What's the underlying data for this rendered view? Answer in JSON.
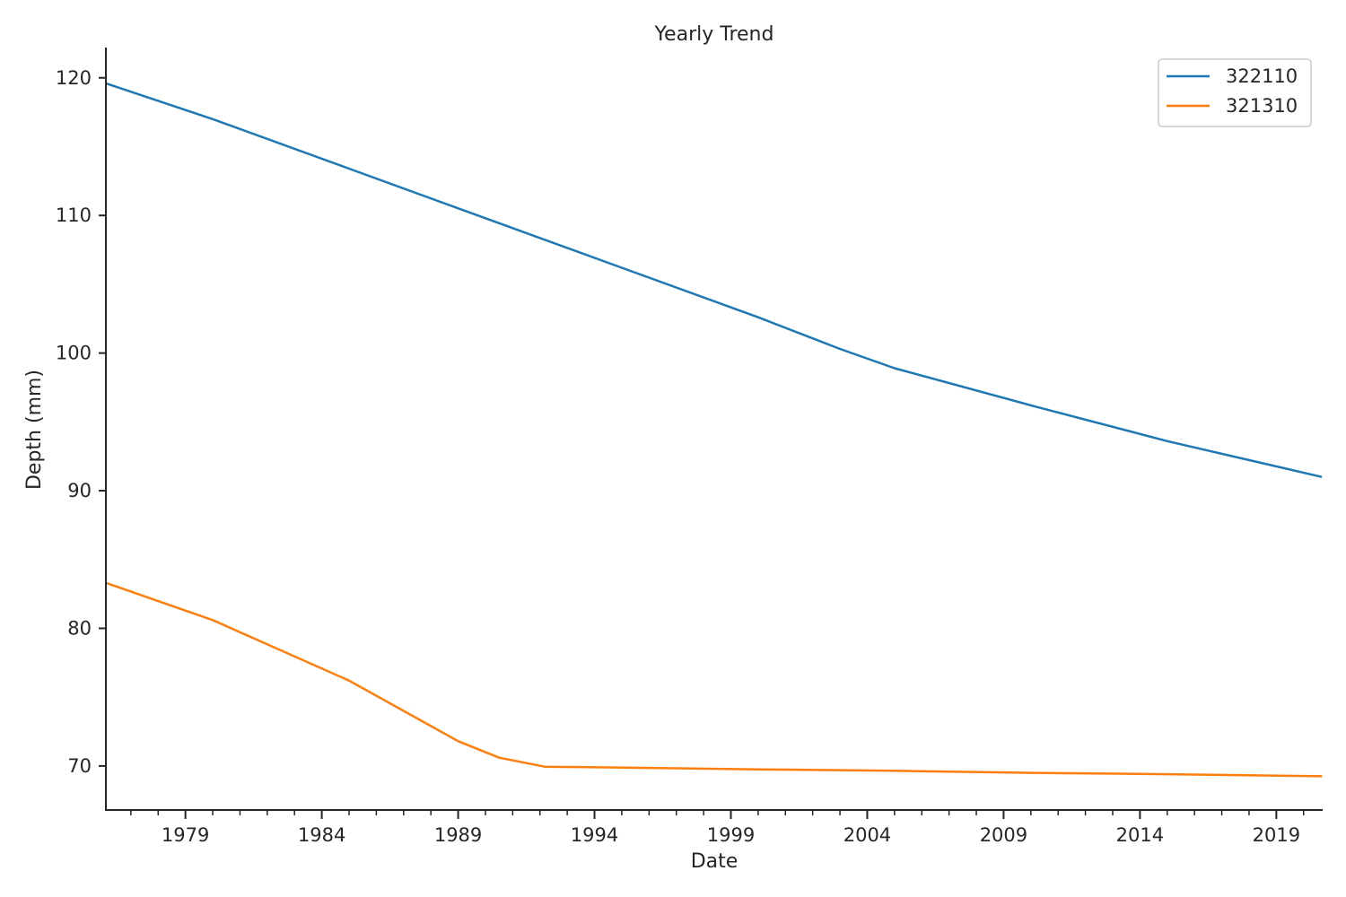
{
  "chart_data": {
    "type": "line",
    "title": "Yearly Trend",
    "xlabel": "Date",
    "ylabel": "Depth (mm)",
    "xlim": [
      "1976-02",
      "2020-09"
    ],
    "ylim": [
      66.8,
      122.2
    ],
    "x_ticks": [
      "1979",
      "1984",
      "1989",
      "1994",
      "1999",
      "2004",
      "2009",
      "2014",
      "2019"
    ],
    "y_ticks": [
      70,
      80,
      90,
      100,
      110,
      120
    ],
    "legend_position": "top-right",
    "grid": false,
    "series": [
      {
        "name": "322110",
        "color": "#1f77b4",
        "points": [
          [
            "1976-02",
            119.6
          ],
          [
            "1980-01",
            117.0
          ],
          [
            "1985-01",
            113.4
          ],
          [
            "1990-01",
            109.8
          ],
          [
            "1995-01",
            106.2
          ],
          [
            "2000-01",
            102.6
          ],
          [
            "2003-01",
            100.3
          ],
          [
            "2005-01",
            98.9
          ],
          [
            "2010-01",
            96.2
          ],
          [
            "2015-01",
            93.6
          ],
          [
            "2020-09",
            91.0
          ]
        ]
      },
      {
        "name": "321310",
        "color": "#ff7f0e",
        "points": [
          [
            "1976-02",
            83.3
          ],
          [
            "1980-01",
            80.6
          ],
          [
            "1985-01",
            76.2
          ],
          [
            "1989-01",
            71.8
          ],
          [
            "1990-07",
            70.6
          ],
          [
            "1992-03",
            69.95
          ],
          [
            "2000-01",
            69.75
          ],
          [
            "2005-01",
            69.65
          ],
          [
            "2010-01",
            69.5
          ],
          [
            "2015-01",
            69.4
          ],
          [
            "2020-09",
            69.25
          ]
        ]
      }
    ]
  }
}
